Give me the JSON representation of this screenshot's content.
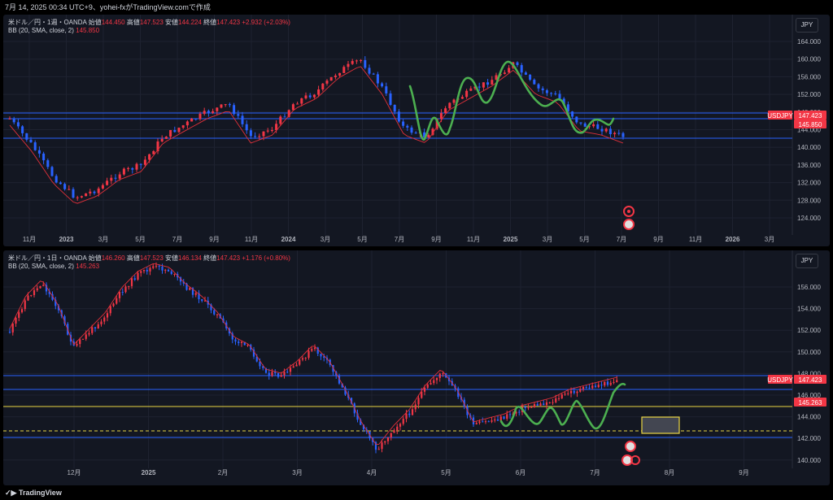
{
  "header": {
    "text": "7月 14, 2025 00:34 UTC+9、yohei-fxがTradingView.comで作成"
  },
  "footer": {
    "brand": "TradingView"
  },
  "panel1": {
    "title": "米ドル／円・1週・OANDA",
    "ohlc": {
      "o_label": "始値",
      "o": "144.450",
      "h_label": "高値",
      "h": "147.523",
      "l_label": "安値",
      "l": "144.224",
      "c_label": "終値",
      "c": "147.423",
      "chg": "+2.932 (+2.03%)"
    },
    "bb": {
      "label": "BB (20, SMA, close, 2)",
      "value": "145.850"
    },
    "currency": "JPY",
    "price_axis": [
      "164.000",
      "160.000",
      "156.000",
      "152.000",
      "148.000",
      "144.000",
      "140.000",
      "136.000",
      "132.000",
      "128.000",
      "124.000"
    ],
    "price_tags": [
      {
        "text": "USDJPY",
        "color": "#f23645"
      },
      {
        "text": "147.423",
        "color": "#f23645"
      },
      {
        "text": "145.850",
        "color": "#f23645"
      }
    ],
    "time_axis": [
      "11月",
      "2023",
      "3月",
      "5月",
      "7月",
      "9月",
      "11月",
      "2024",
      "3月",
      "5月",
      "7月",
      "9月",
      "11月",
      "2025",
      "3月",
      "5月",
      "7月",
      "9月",
      "11月",
      "2026",
      "3月"
    ]
  },
  "panel2": {
    "title": "米ドル／円・1日・OANDA",
    "ohlc": {
      "o_label": "始値",
      "o": "146.260",
      "h_label": "高値",
      "h": "147.523",
      "l_label": "安値",
      "l": "146.134",
      "c_label": "終値",
      "c": "147.423",
      "chg": "+1.176 (+0.80%)"
    },
    "bb": {
      "label": "BB (20, SMA, close, 2)",
      "value": "145.263"
    },
    "currency": "JPY",
    "price_axis": [
      "156.000",
      "154.000",
      "152.000",
      "150.000",
      "148.000",
      "146.000",
      "144.000",
      "142.000",
      "140.000"
    ],
    "price_tags": [
      {
        "text": "USDJPY",
        "color": "#f23645"
      },
      {
        "text": "147.423",
        "color": "#f23645"
      },
      {
        "text": "145.263",
        "color": "#f23645"
      }
    ],
    "time_axis": [
      "12月",
      "2025",
      "2月",
      "3月",
      "4月",
      "5月",
      "6月",
      "7月",
      "8月",
      "9月"
    ]
  },
  "colors": {
    "up": "#f23645",
    "down": "#2962ff",
    "bb": "#e0303a",
    "wave": "#4caf50",
    "hline": "#2962ff",
    "yellow": "#e8d442",
    "bg": "#131722"
  }
}
